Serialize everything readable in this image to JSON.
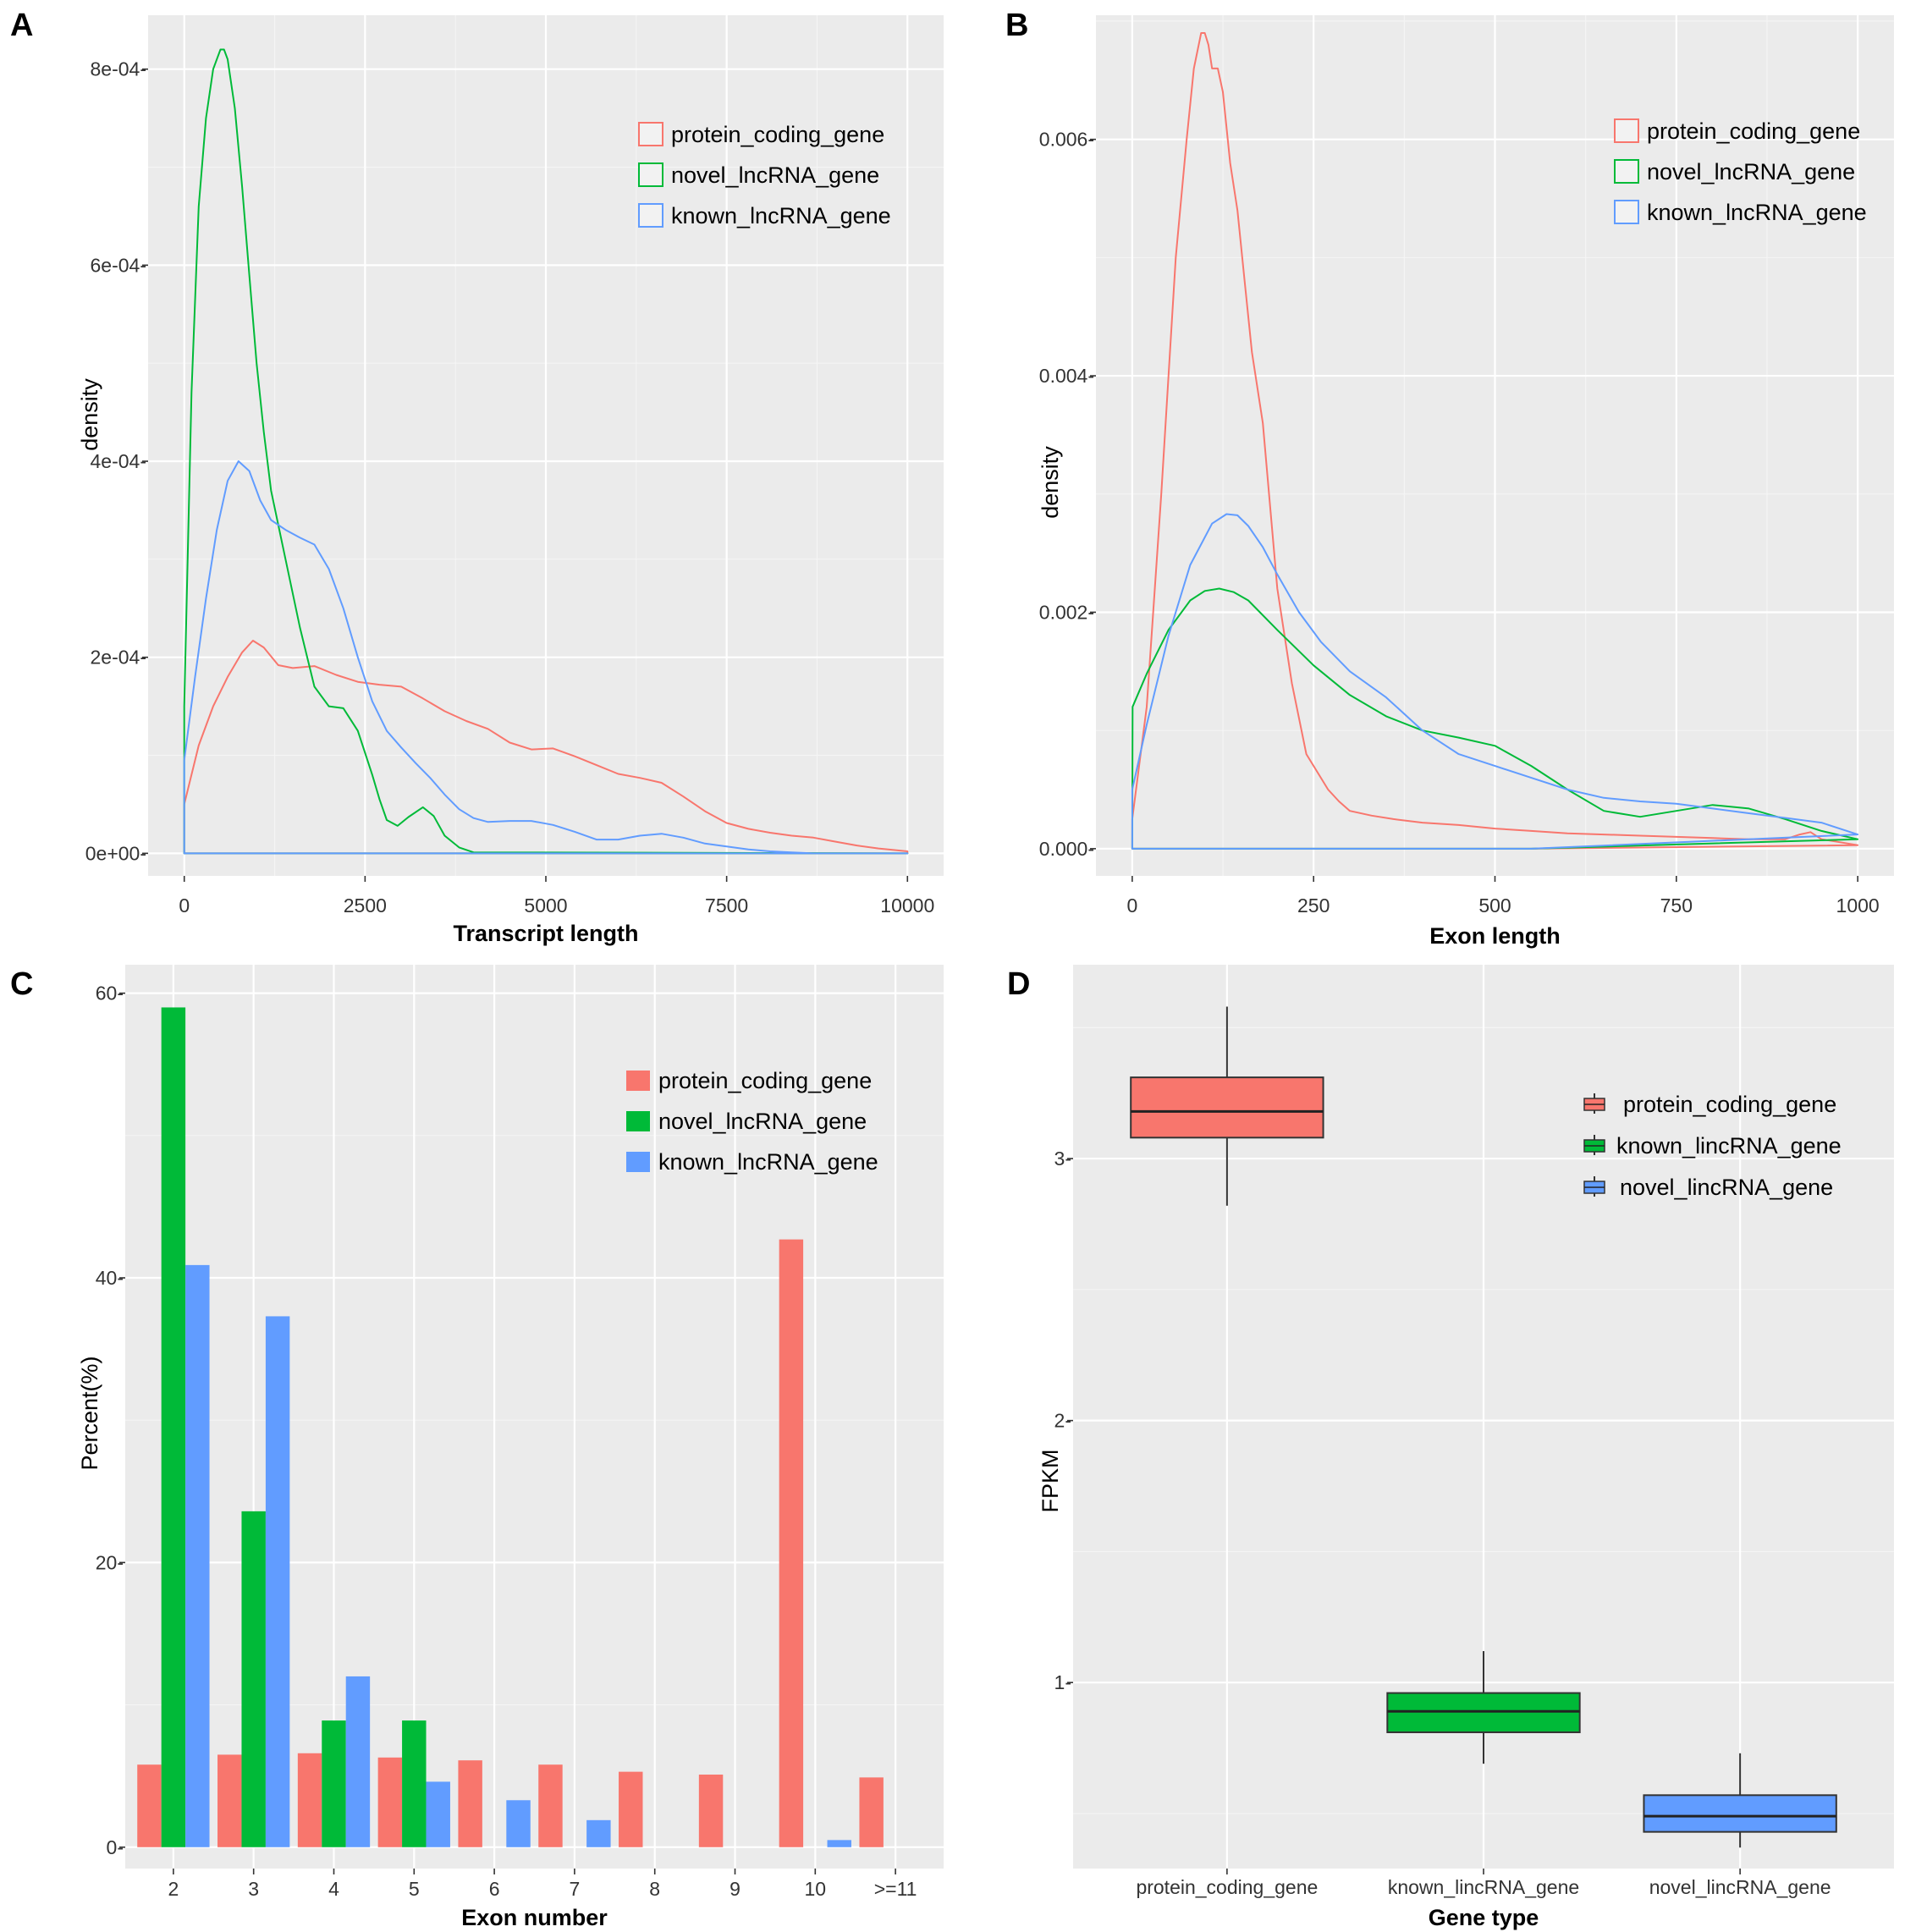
{
  "chart_data": [
    {
      "panel": "A",
      "type": "line",
      "title": "",
      "xlabel": "Transcript length",
      "ylabel": "density",
      "xlim": [
        -500,
        10500
      ],
      "ylim": [
        -2.3e-05,
        0.000855
      ],
      "x_ticks": [
        0,
        2500,
        5000,
        7500,
        10000
      ],
      "x_tick_labels": [
        "0",
        "2500",
        "5000",
        "7500",
        "10000"
      ],
      "y_ticks": [
        0,
        0.0002,
        0.0004,
        0.0006,
        0.0008
      ],
      "y_tick_labels": [
        "0e+00-",
        "2e-04-",
        "4e-04-",
        "6e-04-",
        "8e-04-"
      ],
      "grid": true,
      "legend_position": "top-right",
      "series": [
        {
          "name": "protein_coding_gene",
          "color": "#f8766d",
          "x": [
            0,
            200,
            400,
            600,
            800,
            950,
            1100,
            1300,
            1500,
            1800,
            2100,
            2400,
            2700,
            3000,
            3300,
            3600,
            3900,
            4200,
            4500,
            4800,
            5100,
            5400,
            5700,
            6000,
            6300,
            6600,
            6900,
            7200,
            7500,
            7800,
            8100,
            8400,
            8700,
            9000,
            9300,
            9600,
            10000
          ],
          "y": [
            5e-05,
            0.00011,
            0.00015,
            0.00018,
            0.000205,
            0.000217,
            0.00021,
            0.000192,
            0.000189,
            0.000191,
            0.000182,
            0.000175,
            0.000172,
            0.00017,
            0.000158,
            0.000145,
            0.000135,
            0.000127,
            0.000113,
            0.000106,
            0.000107,
            9.9e-05,
            9e-05,
            8.1e-05,
            7.7e-05,
            7.2e-05,
            5.8e-05,
            4.3e-05,
            3.1e-05,
            2.5e-05,
            2.1e-05,
            1.8e-05,
            1.6e-05,
            1.2e-05,
            8e-06,
            5e-06,
            2e-06
          ]
        },
        {
          "name": "novel_lncRNA_gene",
          "color": "#00ba38",
          "x": [
            0,
            100,
            200,
            300,
            400,
            500,
            550,
            600,
            700,
            800,
            900,
            1000,
            1100,
            1200,
            1400,
            1600,
            1800,
            2000,
            2200,
            2400,
            2600,
            2700,
            2800,
            2950,
            3100,
            3300,
            3450,
            3600,
            3800,
            4000,
            10000
          ],
          "y": [
            0.00015,
            0.00047,
            0.00066,
            0.00075,
            0.0008,
            0.00082,
            0.00082,
            0.00081,
            0.00076,
            0.00068,
            0.00059,
            0.0005,
            0.00043,
            0.00037,
            0.0003,
            0.00023,
            0.00017,
            0.00015,
            0.000148,
            0.000125,
            8e-05,
            5.5e-05,
            3.4e-05,
            2.8e-05,
            3.7e-05,
            4.7e-05,
            3.8e-05,
            1.8e-05,
            6e-06,
            1e-06,
            0
          ]
        },
        {
          "name": "known_lncRNA_gene",
          "color": "#619cff",
          "x": [
            0,
            150,
            300,
            450,
            600,
            750,
            900,
            1050,
            1200,
            1400,
            1600,
            1800,
            2000,
            2200,
            2400,
            2600,
            2800,
            3000,
            3200,
            3400,
            3600,
            3800,
            4000,
            4200,
            4500,
            4800,
            5100,
            5400,
            5700,
            6000,
            6300,
            6600,
            6900,
            7200,
            7500,
            7800,
            8100,
            8400,
            8700,
            10000
          ],
          "y": [
            9.5e-05,
            0.00018,
            0.00026,
            0.00033,
            0.00038,
            0.0004,
            0.00039,
            0.00036,
            0.00034,
            0.00033,
            0.000322,
            0.000315,
            0.00029,
            0.00025,
            0.0002,
            0.000155,
            0.000125,
            0.000108,
            9.2e-05,
            7.7e-05,
            6e-05,
            4.5e-05,
            3.6e-05,
            3.2e-05,
            3.3e-05,
            3.3e-05,
            2.9e-05,
            2.2e-05,
            1.4e-05,
            1.4e-05,
            1.8e-05,
            2e-05,
            1.6e-05,
            1e-05,
            7e-06,
            4e-06,
            2e-06,
            1e-06,
            0,
            0
          ]
        }
      ]
    },
    {
      "panel": "B",
      "type": "line",
      "title": "",
      "xlabel": "Exon length",
      "ylabel": "density",
      "xlim": [
        -50,
        1050
      ],
      "ylim": [
        -0.00023,
        0.00705
      ],
      "x_ticks": [
        0,
        250,
        500,
        750,
        1000
      ],
      "x_tick_labels": [
        "0",
        "250",
        "500",
        "750",
        "1000"
      ],
      "y_ticks": [
        0,
        0.002,
        0.004,
        0.006
      ],
      "y_tick_labels": [
        "0.000-",
        "0.002-",
        "0.004-",
        "0.006-"
      ],
      "grid": true,
      "legend_position": "top-right",
      "series": [
        {
          "name": "protein_coding_gene",
          "color": "#f8766d",
          "x": [
            0,
            20,
            40,
            60,
            75,
            85,
            95,
            100,
            105,
            110,
            118,
            125,
            135,
            145,
            155,
            165,
            180,
            200,
            220,
            240,
            250,
            260,
            270,
            285,
            300,
            330,
            360,
            400,
            450,
            500,
            550,
            600,
            650,
            700,
            750,
            800,
            850,
            900,
            920,
            935,
            950,
            1000
          ],
          "y": [
            0.00025,
            0.0012,
            0.003,
            0.005,
            0.006,
            0.0066,
            0.0069,
            0.0069,
            0.0068,
            0.0066,
            0.0066,
            0.0064,
            0.0058,
            0.0054,
            0.0048,
            0.0042,
            0.0036,
            0.0022,
            0.0014,
            0.0008,
            0.0007,
            0.0006,
            0.0005,
            0.0004,
            0.00032,
            0.00028,
            0.00025,
            0.00022,
            0.0002,
            0.00017,
            0.00015,
            0.00013,
            0.00012,
            0.00011,
            0.0001,
            9e-05,
            8e-05,
            8e-05,
            0.00012,
            0.00014,
            8e-05,
            3e-05
          ]
        },
        {
          "name": "novel_lncRNA_gene",
          "color": "#00ba38",
          "x": [
            0,
            0.5,
            20,
            50,
            80,
            100,
            120,
            140,
            160,
            200,
            250,
            300,
            350,
            400,
            450,
            500,
            550,
            600,
            650,
            700,
            750,
            800,
            850,
            900,
            950,
            1000
          ],
          "y": [
            0,
            0.0012,
            0.00148,
            0.00185,
            0.0021,
            0.00218,
            0.0022,
            0.00217,
            0.0021,
            0.00185,
            0.00155,
            0.0013,
            0.00112,
            0.001,
            0.00094,
            0.00087,
            0.0007,
            0.0005,
            0.00032,
            0.00027,
            0.00032,
            0.00037,
            0.00034,
            0.00025,
            0.00015,
            8e-05
          ]
        },
        {
          "name": "known_lncRNA_gene",
          "color": "#619cff",
          "x": [
            0,
            20,
            50,
            80,
            110,
            130,
            145,
            160,
            180,
            200,
            230,
            260,
            300,
            350,
            400,
            450,
            500,
            550,
            600,
            650,
            700,
            750,
            800,
            850,
            900,
            950,
            1000
          ],
          "y": [
            0.0005,
            0.00105,
            0.0018,
            0.0024,
            0.00275,
            0.00283,
            0.00282,
            0.00273,
            0.00255,
            0.00232,
            0.002,
            0.00175,
            0.0015,
            0.00128,
            0.001,
            0.0008,
            0.0007,
            0.0006,
            0.0005,
            0.00043,
            0.0004,
            0.00038,
            0.00034,
            0.0003,
            0.00026,
            0.00022,
            0.00012
          ]
        }
      ]
    },
    {
      "panel": "C",
      "type": "bar",
      "title": "",
      "xlabel": "Exon number",
      "ylabel": "Percent(%)",
      "ylim": [
        -1.5,
        62
      ],
      "categories": [
        "2",
        "3",
        "4",
        "5",
        "6",
        "7",
        "8",
        "9",
        "10",
        ">=11"
      ],
      "y_ticks": [
        0,
        20,
        40,
        60
      ],
      "y_tick_labels": [
        "0-",
        "20-",
        "40-",
        "60-"
      ],
      "grid": true,
      "legend_position": "top-right",
      "series": [
        {
          "name": "protein_coding_gene",
          "color": "#f8766d",
          "values": [
            5.8,
            6.5,
            6.6,
            6.3,
            6.1,
            5.8,
            5.3,
            5.1,
            42.7,
            4.9
          ]
        },
        {
          "name": "novel_lncRNA_gene",
          "color": "#00ba38",
          "values": [
            59.0,
            23.6,
            8.9,
            8.9,
            0,
            0,
            0,
            0,
            0,
            0
          ]
        },
        {
          "name": "known_lncRNA_gene",
          "color": "#619cff",
          "values": [
            40.9,
            37.3,
            12.0,
            4.6,
            3.3,
            1.9,
            0,
            0,
            0.5,
            0
          ]
        }
      ]
    },
    {
      "panel": "D",
      "type": "box",
      "title": "",
      "xlabel": "Gene type",
      "ylabel": "FPKM",
      "ylim": [
        0.29,
        3.74
      ],
      "categories": [
        "protein_coding_gene",
        "known_lincRNA_gene",
        "novel_lincRNA_gene"
      ],
      "y_ticks": [
        1,
        2,
        3
      ],
      "y_tick_labels": [
        "1-",
        "2-",
        "3-"
      ],
      "grid": true,
      "legend_position": "top-right",
      "boxes": [
        {
          "name": "protein_coding_gene",
          "color": "#f8766d",
          "whisker_low": 2.82,
          "q1": 3.08,
          "median": 3.18,
          "q3": 3.31,
          "whisker_high": 3.58
        },
        {
          "name": "known_lincRNA_gene",
          "color": "#00ba38",
          "whisker_low": 0.69,
          "q1": 0.81,
          "median": 0.89,
          "q3": 0.96,
          "whisker_high": 1.12
        },
        {
          "name": "novel_lincRNA_gene",
          "color": "#619cff",
          "whisker_low": 0.37,
          "q1": 0.43,
          "median": 0.49,
          "q3": 0.57,
          "whisker_high": 0.73
        }
      ],
      "legend": [
        "protein_coding_gene",
        "known_lincRNA_gene",
        "novel_lincRNA_gene"
      ]
    }
  ]
}
